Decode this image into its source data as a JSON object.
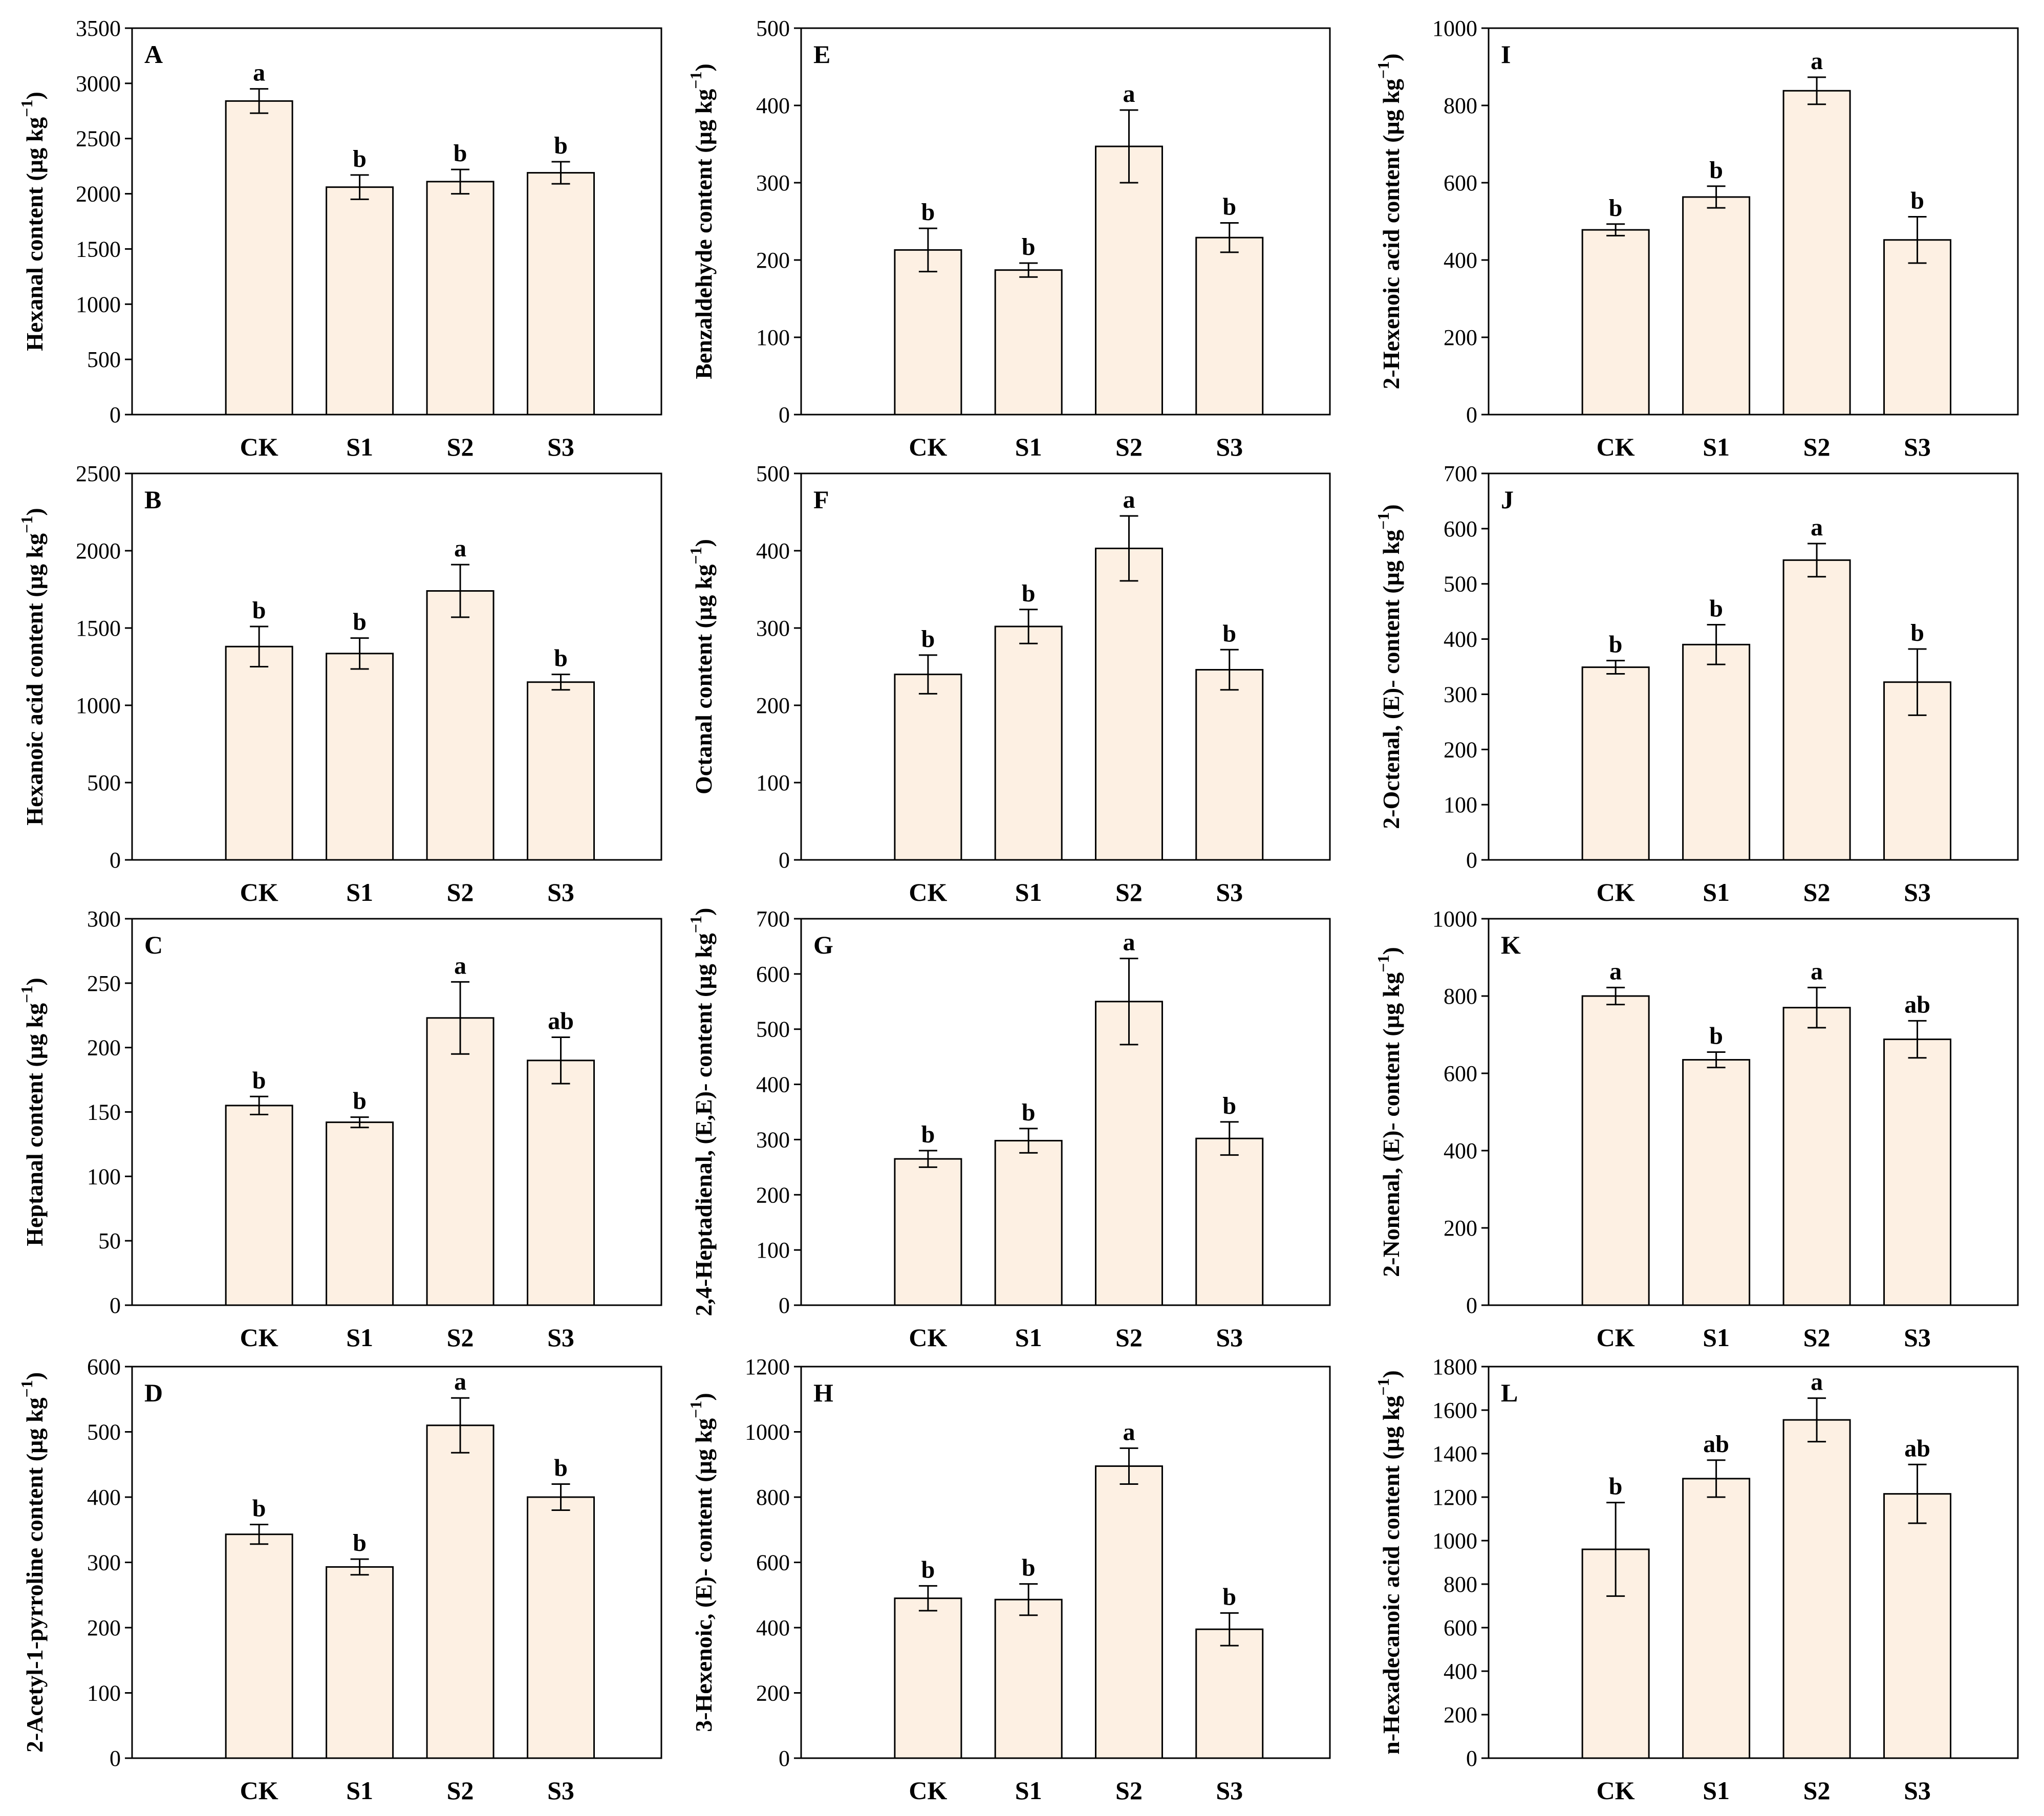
{
  "colors": {
    "bar_fill": "#fdf0e3",
    "bar_stroke": "#000000",
    "axis": "#000000"
  },
  "chart_data": [
    {
      "type": "bar",
      "panel": "A",
      "ylabel": "Hexanal content (µg kg⁻¹)",
      "ylabel_main": "Hexanal content (µg kg",
      "ylabel_sup": "−1",
      "ylabel_tail": ")",
      "categories": [
        "CK",
        "S1",
        "S2",
        "S3"
      ],
      "values": [
        2840,
        2060,
        2110,
        2190
      ],
      "errors": [
        110,
        110,
        110,
        100
      ],
      "significance": [
        "a",
        "b",
        "b",
        "b"
      ],
      "ylim": [
        0,
        3500
      ],
      "ticks": [
        0,
        500,
        1000,
        1500,
        2000,
        2500,
        3000,
        3500
      ],
      "tick_labels": [
        "0",
        "500",
        "1000",
        "1500",
        "2000",
        "2500",
        "3000",
        "3500"
      ]
    },
    {
      "type": "bar",
      "panel": "B",
      "ylabel": "Hexanoic acid content (µg kg⁻¹)",
      "ylabel_main": "Hexanoic acid content (µg kg",
      "ylabel_sup": "−1",
      "ylabel_tail": ")",
      "categories": [
        "CK",
        "S1",
        "S2",
        "S3"
      ],
      "values": [
        1380,
        1335,
        1740,
        1150
      ],
      "errors": [
        130,
        100,
        170,
        50
      ],
      "significance": [
        "b",
        "b",
        "a",
        "b"
      ],
      "ylim": [
        0,
        2500
      ],
      "ticks": [
        0,
        500,
        1000,
        1500,
        2000,
        2500
      ],
      "tick_labels": [
        "0",
        "500",
        "1000",
        "1500",
        "2000",
        "2500"
      ]
    },
    {
      "type": "bar",
      "panel": "C",
      "ylabel": "Heptanal content (µg kg⁻¹)",
      "ylabel_main": "Heptanal content (µg kg",
      "ylabel_sup": "−1",
      "ylabel_tail": ")",
      "categories": [
        "CK",
        "S1",
        "S2",
        "S3"
      ],
      "values": [
        155,
        142,
        223,
        190
      ],
      "errors": [
        7,
        4,
        28,
        18
      ],
      "significance": [
        "b",
        "b",
        "a",
        "ab"
      ],
      "ylim": [
        0,
        300
      ],
      "ticks": [
        0,
        50,
        100,
        150,
        200,
        250,
        300
      ],
      "tick_labels": [
        "0",
        "50",
        "100",
        "150",
        "200",
        "250",
        "300"
      ]
    },
    {
      "type": "bar",
      "panel": "D",
      "ylabel": "2-Acetyl-1-pyrroline content (µg kg⁻¹)",
      "ylabel_main": "2-Acetyl-1-pyrroline content (µg kg",
      "ylabel_sup": "−1",
      "ylabel_tail": ")",
      "categories": [
        "CK",
        "S1",
        "S2",
        "S3"
      ],
      "values": [
        343,
        293,
        510,
        400
      ],
      "errors": [
        15,
        12,
        42,
        20
      ],
      "significance": [
        "b",
        "b",
        "a",
        "b"
      ],
      "ylim": [
        0,
        600
      ],
      "ticks": [
        0,
        100,
        200,
        300,
        400,
        500,
        600
      ],
      "tick_labels": [
        "0",
        "100",
        "200",
        "300",
        "400",
        "500",
        "600"
      ]
    },
    {
      "type": "bar",
      "panel": "E",
      "ylabel": "Benzaldehyde content (µg kg⁻¹)",
      "ylabel_main": "Benzaldehyde content (µg kg",
      "ylabel_sup": "−1",
      "ylabel_tail": ")",
      "categories": [
        "CK",
        "S1",
        "S2",
        "S3"
      ],
      "values": [
        213,
        187,
        347,
        229
      ],
      "errors": [
        28,
        9,
        47,
        19
      ],
      "significance": [
        "b",
        "b",
        "a",
        "b"
      ],
      "ylim": [
        0,
        500
      ],
      "ticks": [
        0,
        100,
        200,
        300,
        400,
        500
      ],
      "tick_labels": [
        "0",
        "100",
        "200",
        "300",
        "400",
        "500"
      ]
    },
    {
      "type": "bar",
      "panel": "F",
      "ylabel": "Octanal content (µg kg⁻¹)",
      "ylabel_main": "Octanal content (µg kg",
      "ylabel_sup": "−1",
      "ylabel_tail": ")",
      "categories": [
        "CK",
        "S1",
        "S2",
        "S3"
      ],
      "values": [
        240,
        302,
        403,
        246
      ],
      "errors": [
        25,
        22,
        42,
        26
      ],
      "significance": [
        "b",
        "b",
        "a",
        "b"
      ],
      "ylim": [
        0,
        500
      ],
      "ticks": [
        0,
        100,
        200,
        300,
        400,
        500
      ],
      "tick_labels": [
        "0",
        "100",
        "200",
        "300",
        "400",
        "500"
      ]
    },
    {
      "type": "bar",
      "panel": "G",
      "ylabel": "2,4-Heptadienal, (E,E)- content (µg kg⁻¹)",
      "ylabel_main": "2,4-Heptadienal, (E,E)- content (µg kg",
      "ylabel_sup": "−1",
      "ylabel_tail": ")",
      "categories": [
        "CK",
        "S1",
        "S2",
        "S3"
      ],
      "values": [
        265,
        298,
        550,
        302
      ],
      "errors": [
        15,
        22,
        78,
        30
      ],
      "significance": [
        "b",
        "b",
        "a",
        "b"
      ],
      "ylim": [
        0,
        700
      ],
      "ticks": [
        0,
        100,
        200,
        300,
        400,
        500,
        600,
        700
      ],
      "tick_labels": [
        "0",
        "100",
        "200",
        "300",
        "400",
        "500",
        "600",
        "700"
      ]
    },
    {
      "type": "bar",
      "panel": "H",
      "ylabel": "3-Hexenoic, (E)- content (µg kg⁻¹)",
      "ylabel_main": "3-Hexenoic, (E)- content (µg kg",
      "ylabel_sup": "−1",
      "ylabel_tail": ")",
      "categories": [
        "CK",
        "S1",
        "S2",
        "S3"
      ],
      "values": [
        490,
        486,
        895,
        395
      ],
      "errors": [
        38,
        48,
        55,
        50
      ],
      "significance": [
        "b",
        "b",
        "a",
        "b"
      ],
      "ylim": [
        0,
        1200
      ],
      "ticks": [
        0,
        200,
        400,
        600,
        800,
        1000,
        1200
      ],
      "tick_labels": [
        "0",
        "200",
        "400",
        "600",
        "800",
        "1000",
        "1200"
      ]
    },
    {
      "type": "bar",
      "panel": "I",
      "ylabel": "2-Hexenoic acid content (µg kg⁻¹)",
      "ylabel_main": "2-Hexenoic acid content (µg kg",
      "ylabel_sup": "−1",
      "ylabel_tail": ")",
      "categories": [
        "CK",
        "S1",
        "S2",
        "S3"
      ],
      "values": [
        478,
        563,
        838,
        452
      ],
      "errors": [
        15,
        28,
        35,
        60
      ],
      "significance": [
        "b",
        "b",
        "a",
        "b"
      ],
      "ylim": [
        0,
        1000
      ],
      "ticks": [
        0,
        200,
        400,
        600,
        800,
        1000
      ],
      "tick_labels": [
        "0",
        "200",
        "400",
        "600",
        "800",
        "1000"
      ]
    },
    {
      "type": "bar",
      "panel": "J",
      "ylabel": "2-Octenal, (E)- content (µg kg⁻¹)",
      "ylabel_main": "2-Octenal, (E)- content (µg kg",
      "ylabel_sup": "−1",
      "ylabel_tail": ")",
      "categories": [
        "CK",
        "S1",
        "S2",
        "S3"
      ],
      "values": [
        349,
        390,
        543,
        322
      ],
      "errors": [
        12,
        36,
        30,
        60
      ],
      "significance": [
        "b",
        "b",
        "a",
        "b"
      ],
      "ylim": [
        0,
        700
      ],
      "ticks": [
        0,
        100,
        200,
        300,
        400,
        500,
        600,
        700
      ],
      "tick_labels": [
        "0",
        "100",
        "200",
        "300",
        "400",
        "500",
        "600",
        "700"
      ]
    },
    {
      "type": "bar",
      "panel": "K",
      "ylabel": "2-Nonenal, (E)- content (µg kg⁻¹)",
      "ylabel_main": "2-Nonenal, (E)- content (µg kg",
      "ylabel_sup": "−1",
      "ylabel_tail": ")",
      "categories": [
        "CK",
        "S1",
        "S2",
        "S3"
      ],
      "values": [
        800,
        635,
        770,
        688
      ],
      "errors": [
        22,
        20,
        52,
        48
      ],
      "significance": [
        "a",
        "b",
        "a",
        "ab"
      ],
      "ylim": [
        0,
        1000
      ],
      "ticks": [
        0,
        200,
        400,
        600,
        800,
        1000
      ],
      "tick_labels": [
        "0",
        "200",
        "400",
        "600",
        "800",
        "1000"
      ]
    },
    {
      "type": "bar",
      "panel": "L",
      "ylabel": "n-Hexadecanoic acid content (µg kg⁻¹)",
      "ylabel_main": "n-Hexadecanoic acid content (µg kg",
      "ylabel_sup": "−1",
      "ylabel_tail": ")",
      "categories": [
        "CK",
        "S1",
        "S2",
        "S3"
      ],
      "values": [
        960,
        1285,
        1555,
        1215
      ],
      "errors": [
        215,
        85,
        100,
        135
      ],
      "significance": [
        "b",
        "ab",
        "a",
        "ab"
      ],
      "ylim": [
        0,
        1800
      ],
      "ticks": [
        0,
        200,
        400,
        600,
        800,
        1000,
        1200,
        1400,
        1600,
        1800
      ],
      "tick_labels": [
        "0",
        "200",
        "400",
        "600",
        "800",
        "1000",
        "1200",
        "1400",
        "1600",
        "1800"
      ]
    }
  ]
}
